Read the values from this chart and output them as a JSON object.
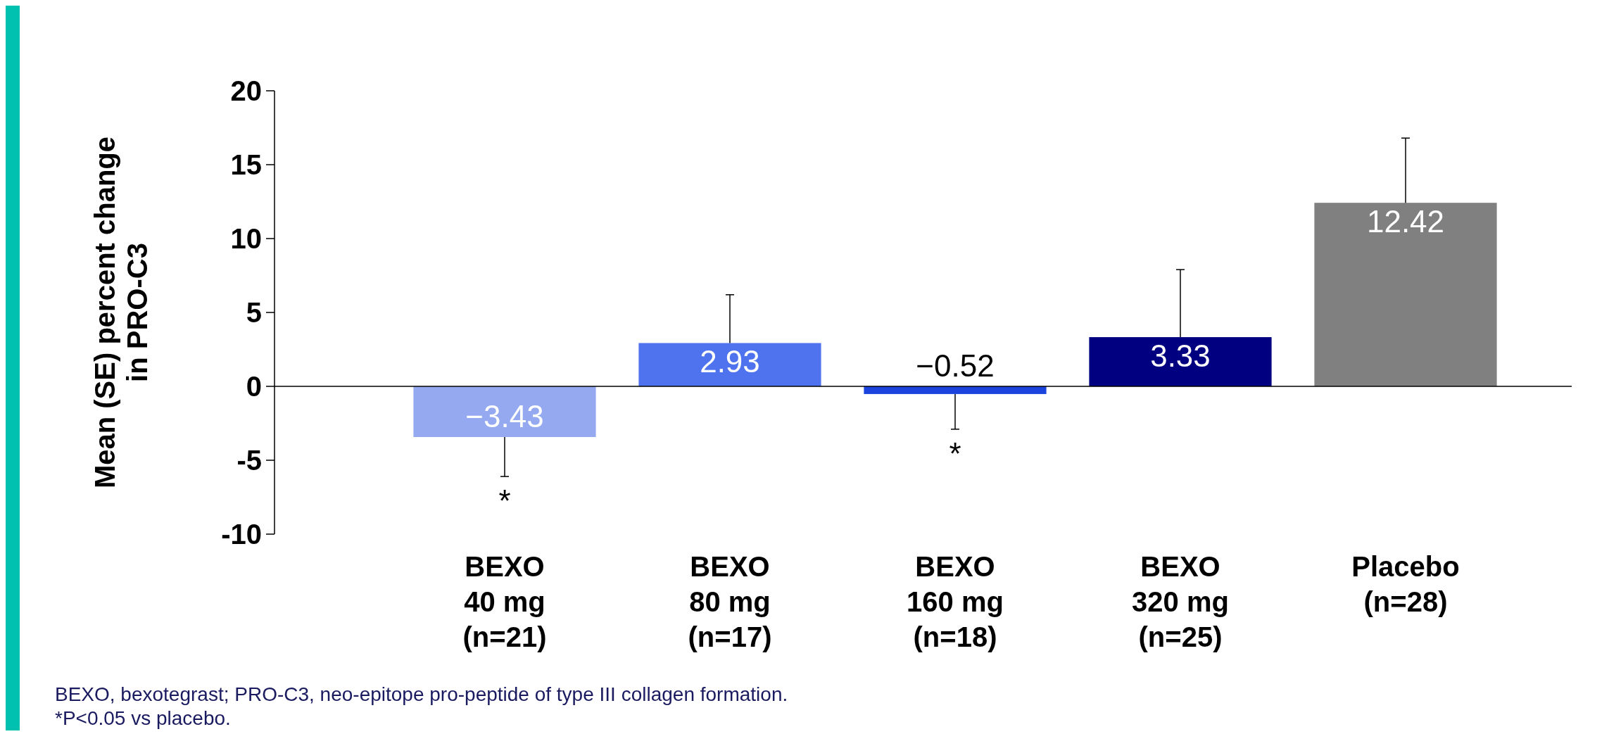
{
  "chart_data": {
    "type": "bar",
    "ylabel": "Mean (SE) percent change\nin PRO-C3",
    "categories": [
      "BEXO\n40 mg\n(n=21)",
      "BEXO\n80 mg\n(n=17)",
      "BEXO\n160 mg\n(n=18)",
      "BEXO\n320 mg\n(n=25)",
      "Placebo\n(n=28)"
    ],
    "values": [
      -3.43,
      2.93,
      -0.52,
      3.33,
      12.42
    ],
    "colors": [
      "#94a9f0",
      "#4f73ee",
      "#1a44dd",
      "#000080",
      "#808080"
    ],
    "errors": [
      [
        -6.1,
        -3.43
      ],
      [
        2.93,
        6.2
      ],
      [
        -2.9,
        -0.52
      ],
      [
        3.33,
        7.9
      ],
      [
        12.42,
        16.8
      ]
    ],
    "data_labels": true,
    "ylim": [
      -10,
      20
    ],
    "yticks": [
      -10,
      -5,
      0,
      5,
      10,
      15,
      20
    ],
    "annotations": [
      {
        "text": "*",
        "x": "BEXO\n40 mg\n(n=21)",
        "y": -6.1
      },
      {
        "text": "*",
        "x": "BEXO\n160 mg\n(n=18)",
        "y": -2.9
      },
      "BEXO, bexotegrast; PRO-C3, neo-epitope pro-peptide of type III collagen formation.",
      "*P<0.05 vs placebo."
    ]
  }
}
